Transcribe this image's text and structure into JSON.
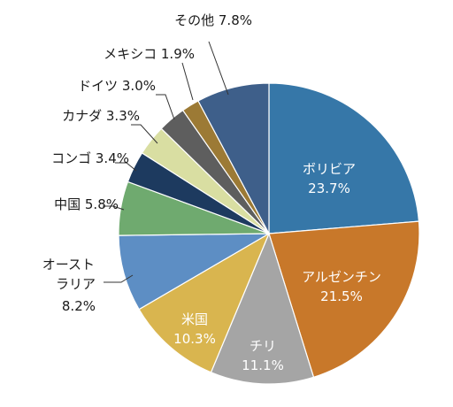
{
  "chart_data": {
    "type": "pie",
    "start_angle_deg": 0,
    "direction": "clockwise",
    "slices": [
      {
        "name": "ボリビア",
        "value": 23.7,
        "value_label": "23.7%",
        "color": "#3677a8",
        "label_position": "inside",
        "label_color": "#ffffff"
      },
      {
        "name": "アルゼンチン",
        "value": 21.5,
        "value_label": "21.5%",
        "color": "#c8782a",
        "label_position": "inside",
        "label_color": "#ffffff"
      },
      {
        "name": "チリ",
        "value": 11.1,
        "value_label": "11.1%",
        "color": "#a5a5a5",
        "label_position": "inside",
        "label_color": "#ffffff"
      },
      {
        "name": "米国",
        "value": 10.3,
        "value_label": "10.3%",
        "color": "#d9b54f",
        "label_position": "inside",
        "label_color": "#ffffff"
      },
      {
        "name": "オーストラリア",
        "name_lines": [
          "オースト",
          "ラリア"
        ],
        "value": 8.2,
        "value_label": "8.2%",
        "color": "#5d8ec4",
        "label_position": "outside",
        "label_color": "#1a1a1a"
      },
      {
        "name": "中国",
        "value": 5.8,
        "value_label": "5.8%",
        "color": "#6faa6f",
        "label_position": "outside",
        "label_color": "#1a1a1a"
      },
      {
        "name": "コンゴ",
        "value": 3.4,
        "value_label": "3.4%",
        "color": "#1d3a5f",
        "label_position": "outside",
        "label_color": "#1a1a1a"
      },
      {
        "name": "カナダ",
        "value": 3.3,
        "value_label": "3.3%",
        "color": "#d9dea2",
        "label_position": "outside",
        "label_color": "#1a1a1a"
      },
      {
        "name": "ドイツ",
        "value": 3.0,
        "value_label": "3.0%",
        "color": "#5e5e5e",
        "label_position": "outside",
        "label_color": "#1a1a1a"
      },
      {
        "name": "メキシコ",
        "value": 1.9,
        "value_label": "1.9%",
        "color": "#9c7a35",
        "label_position": "outside",
        "label_color": "#1a1a1a"
      },
      {
        "name": "その他",
        "value": 7.8,
        "value_label": "7.8%",
        "color": "#3e5f8a",
        "label_position": "outside",
        "label_color": "#1a1a1a"
      }
    ]
  }
}
